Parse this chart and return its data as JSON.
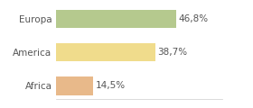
{
  "categories": [
    "Africa",
    "America",
    "Europa"
  ],
  "values": [
    14.5,
    38.7,
    46.8
  ],
  "labels": [
    "14,5%",
    "38,7%",
    "46,8%"
  ],
  "bar_colors": [
    "#e8b98a",
    "#f0dc8c",
    "#b5c98e"
  ],
  "background_color": "#ffffff",
  "xlim": [
    0,
    65
  ],
  "bar_height": 0.55,
  "label_fontsize": 7.5,
  "tick_fontsize": 7.5
}
